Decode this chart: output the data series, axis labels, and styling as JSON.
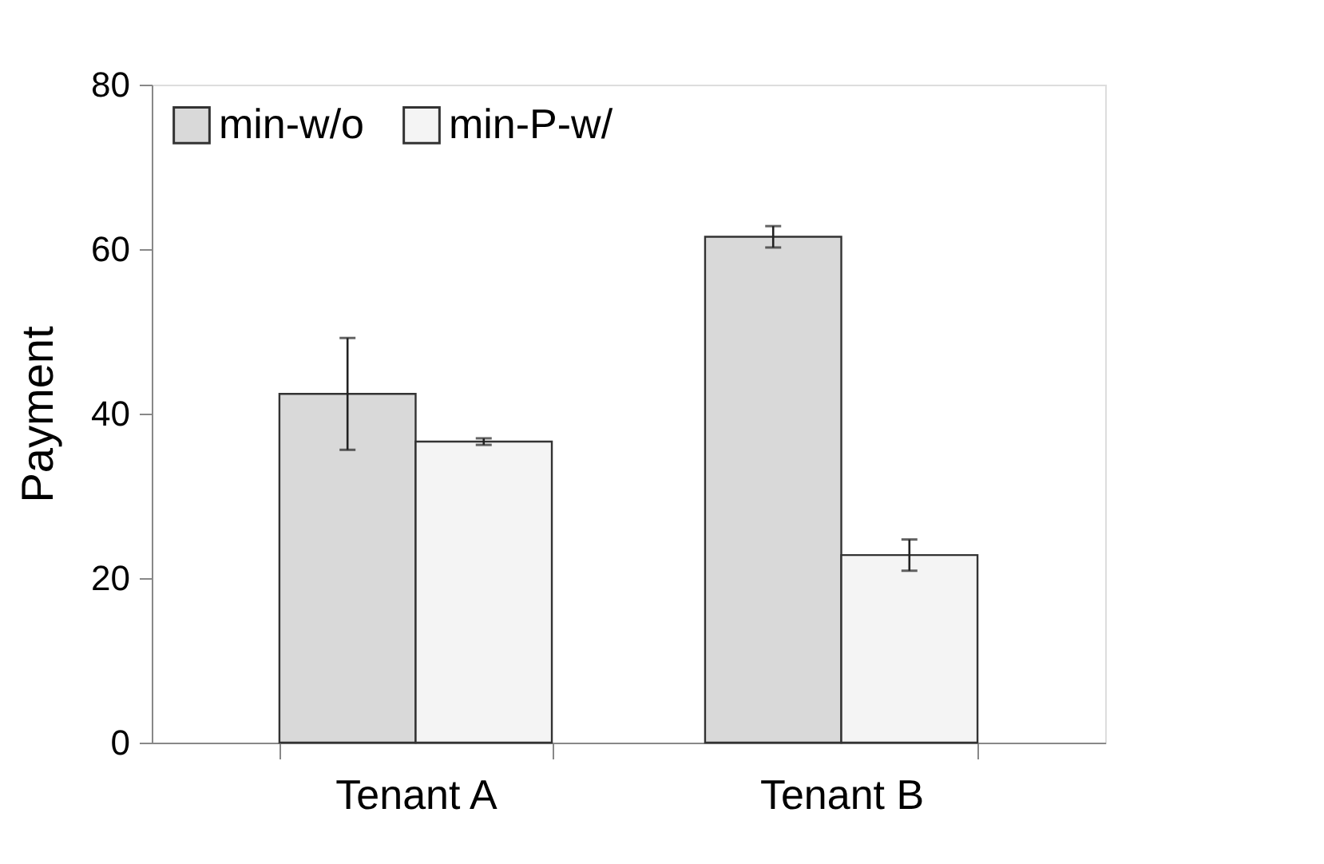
{
  "chart_data": {
    "type": "bar",
    "ylabel": "Payment",
    "categories": [
      "Tenant A",
      "Tenant B"
    ],
    "series": [
      {
        "name": "min-w/o",
        "color": "#d9d9d9",
        "values": [
          42.4,
          61.5
        ],
        "errors": [
          6.8,
          1.3
        ]
      },
      {
        "name": "min-P-w/",
        "color": "#f4f4f4",
        "values": [
          36.6,
          22.8
        ],
        "errors": [
          0.4,
          1.9
        ]
      }
    ],
    "ylim": [
      0,
      80
    ],
    "yticks": [
      0,
      20,
      40,
      60,
      80
    ],
    "grid": false,
    "legend": "top left"
  }
}
